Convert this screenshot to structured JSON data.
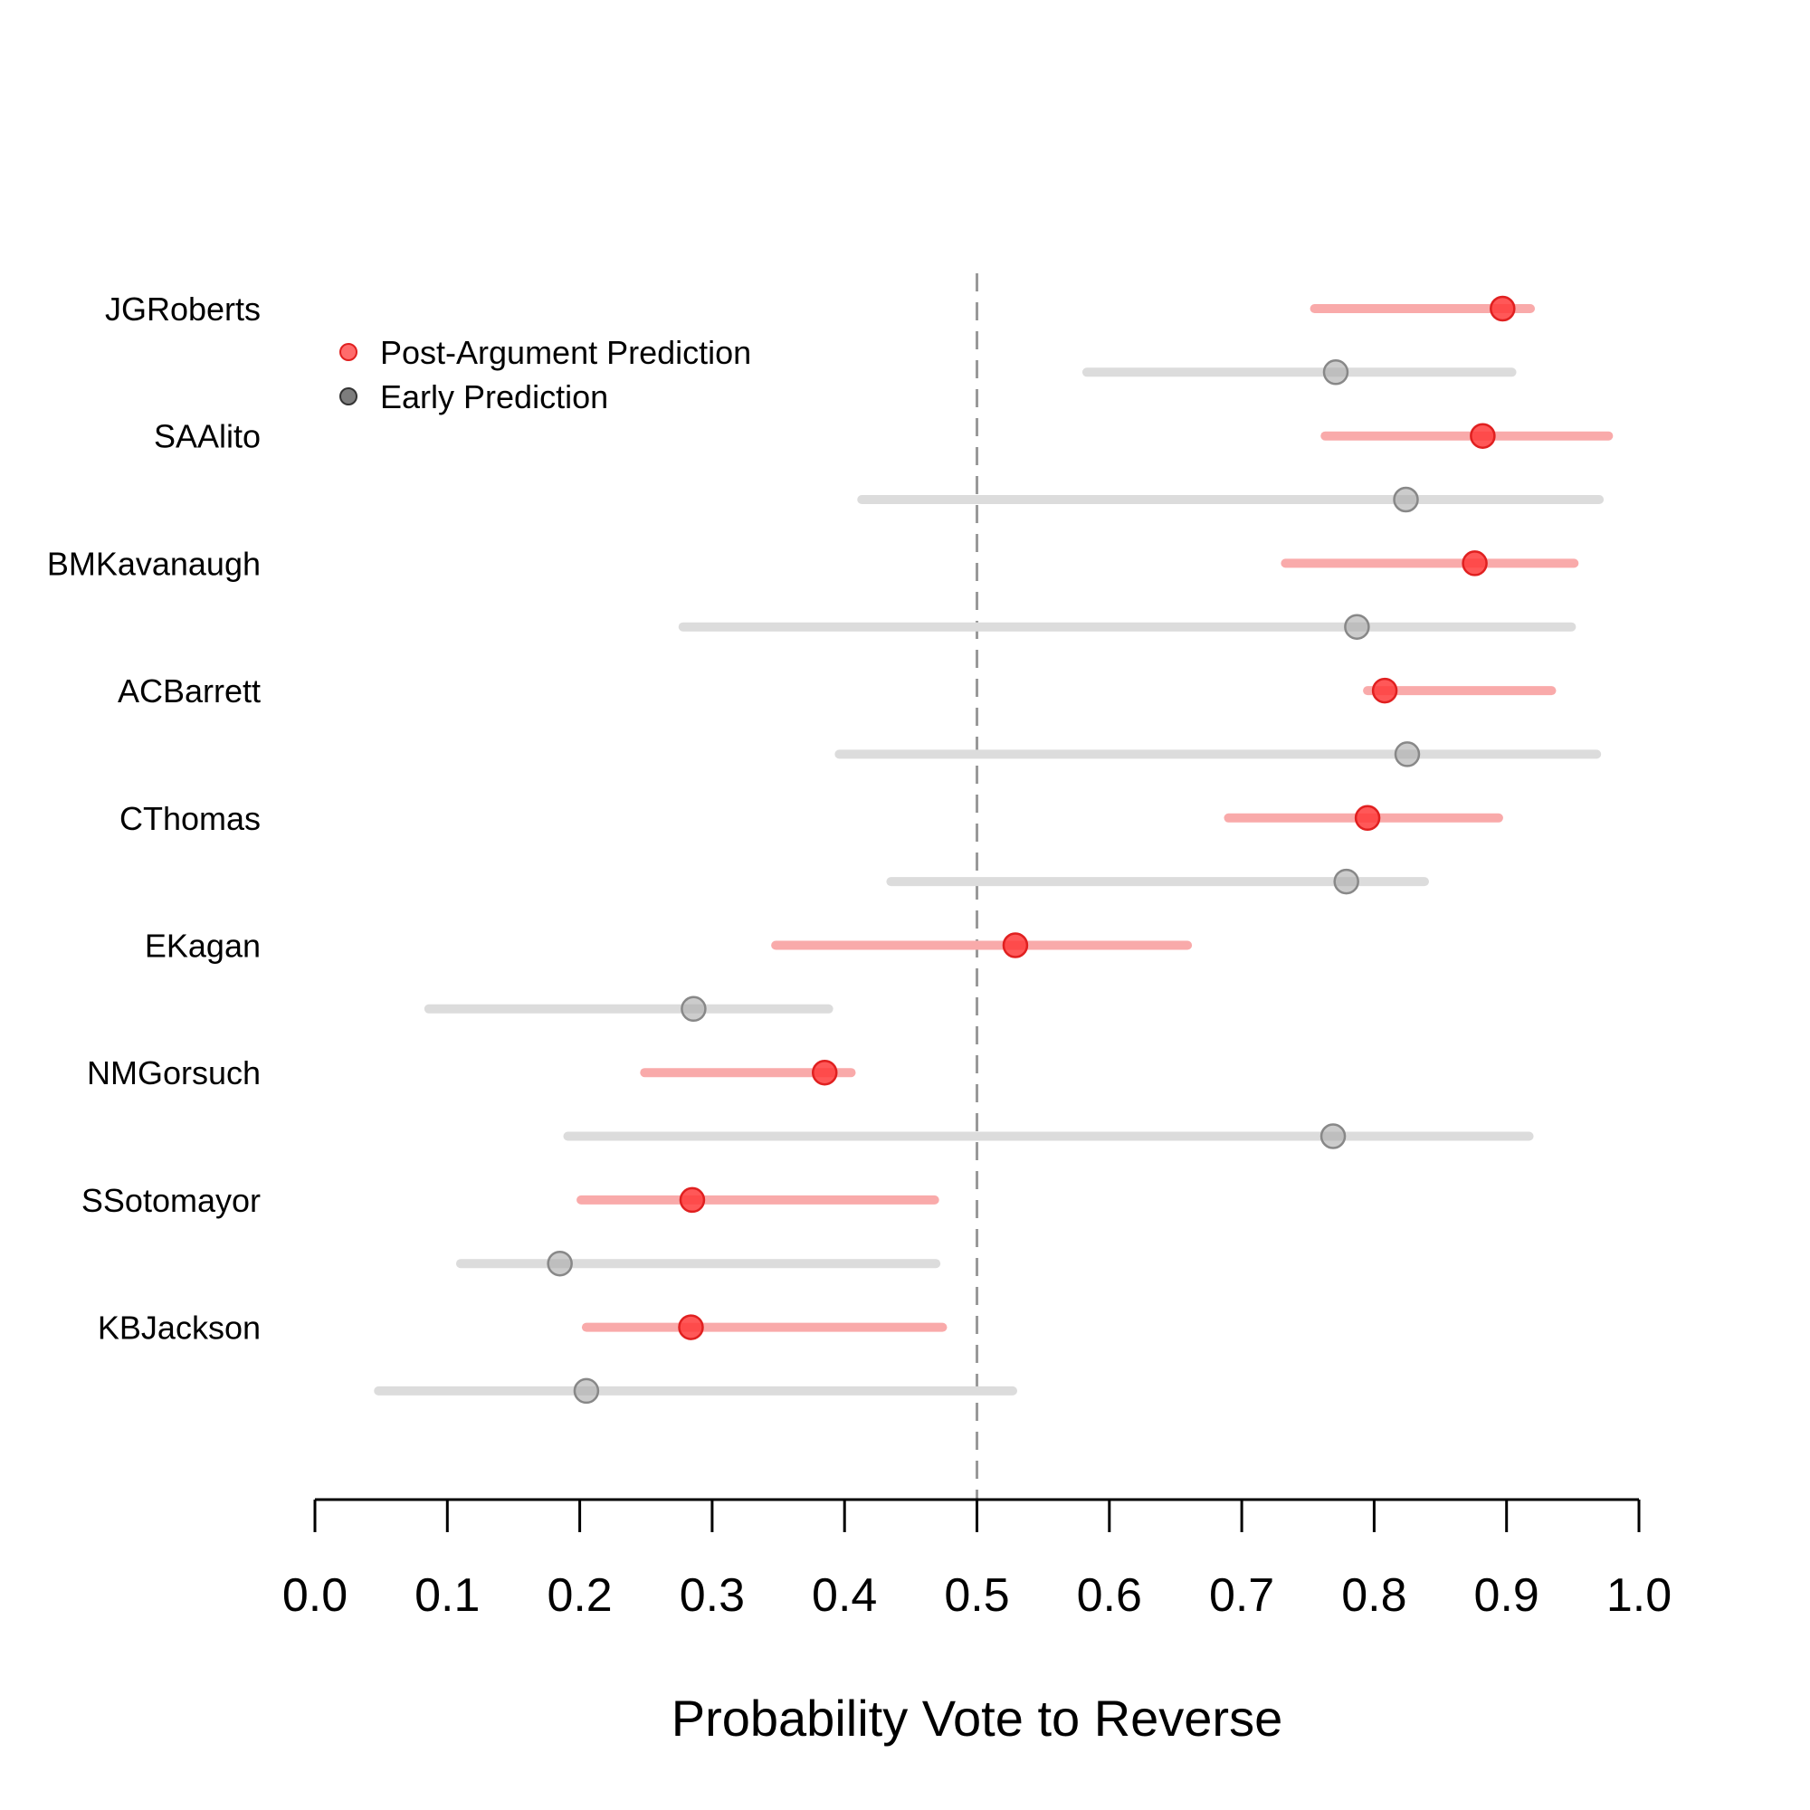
{
  "chart_data": {
    "type": "forest",
    "xlabel": "Probability Vote to Reverse",
    "xlim": [
      0.0,
      1.0
    ],
    "x_ticks": [
      "0.0",
      "0.1",
      "0.2",
      "0.3",
      "0.4",
      "0.5",
      "0.6",
      "0.7",
      "0.8",
      "0.9",
      "1.0"
    ],
    "reference_line": 0.5,
    "legend_position": "top-left",
    "grid": false,
    "series": [
      {
        "name": "Post-Argument Prediction",
        "color": "#ff3b3b",
        "interval_color": "#f9aaaa"
      },
      {
        "name": "Early Prediction",
        "color": "#aaaaaa",
        "interval_color": "#dcdcdc"
      }
    ],
    "justices": [
      {
        "name": "JGRoberts",
        "post": {
          "est": 0.897,
          "lo": 0.755,
          "hi": 0.918
        },
        "early": {
          "est": 0.771,
          "lo": 0.583,
          "hi": 0.904
        }
      },
      {
        "name": "SAAlito",
        "post": {
          "est": 0.882,
          "lo": 0.763,
          "hi": 0.977
        },
        "early": {
          "est": 0.824,
          "lo": 0.413,
          "hi": 0.97
        }
      },
      {
        "name": "BMKavanaugh",
        "post": {
          "est": 0.876,
          "lo": 0.733,
          "hi": 0.951
        },
        "early": {
          "est": 0.787,
          "lo": 0.278,
          "hi": 0.949
        }
      },
      {
        "name": "ACBarrett",
        "post": {
          "est": 0.808,
          "lo": 0.795,
          "hi": 0.934
        },
        "early": {
          "est": 0.825,
          "lo": 0.396,
          "hi": 0.968
        }
      },
      {
        "name": "CThomas",
        "post": {
          "est": 0.795,
          "lo": 0.69,
          "hi": 0.894
        },
        "early": {
          "est": 0.779,
          "lo": 0.435,
          "hi": 0.838
        }
      },
      {
        "name": "EKagan",
        "post": {
          "est": 0.529,
          "lo": 0.348,
          "hi": 0.659
        },
        "early": {
          "est": 0.286,
          "lo": 0.086,
          "hi": 0.388
        }
      },
      {
        "name": "NMGorsuch",
        "post": {
          "est": 0.385,
          "lo": 0.249,
          "hi": 0.405
        },
        "early": {
          "est": 0.769,
          "lo": 0.191,
          "hi": 0.917
        }
      },
      {
        "name": "SSotomayor",
        "post": {
          "est": 0.285,
          "lo": 0.201,
          "hi": 0.468
        },
        "early": {
          "est": 0.185,
          "lo": 0.11,
          "hi": 0.469
        }
      },
      {
        "name": "KBJackson",
        "post": {
          "est": 0.284,
          "lo": 0.205,
          "hi": 0.474
        },
        "early": {
          "est": 0.205,
          "lo": 0.048,
          "hi": 0.527
        }
      }
    ]
  }
}
